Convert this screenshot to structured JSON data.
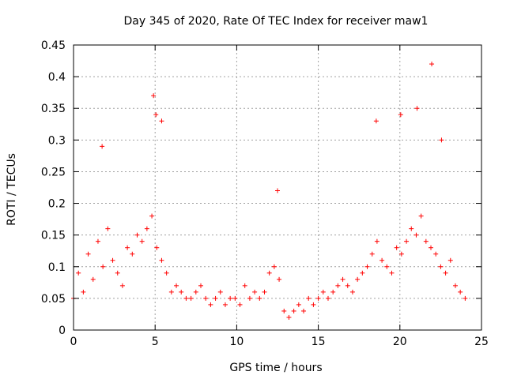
{
  "chart_data": {
    "type": "scatter",
    "title": "Day 345 of 2020, Rate Of TEC Index for receiver maw1",
    "xlabel": "GPS time / hours",
    "ylabel": "ROTI / TECUs",
    "xlim": [
      0,
      25
    ],
    "ylim": [
      0,
      0.45
    ],
    "x_ticks": [
      0,
      5,
      10,
      15,
      20,
      25
    ],
    "x_tick_labels": [
      "0",
      "5",
      "10",
      "15",
      "20",
      "25"
    ],
    "y_ticks": [
      0,
      0.05,
      0.1,
      0.15,
      0.2,
      0.25,
      0.3,
      0.35,
      0.4,
      0.45
    ],
    "y_tick_labels": [
      "0",
      "0.05",
      "0.1",
      "0.15",
      "0.2",
      "0.25",
      "0.3",
      "0.35",
      "0.4",
      "0.45"
    ],
    "grid": true,
    "marker": "+",
    "color": "#ff0000",
    "series": [
      {
        "x": [
          0.0,
          0.3,
          0.6,
          0.9,
          1.2,
          1.5,
          1.8,
          2.1,
          2.4,
          2.7,
          3.0,
          3.3,
          3.6,
          3.9,
          4.2,
          4.5,
          4.8,
          5.1,
          5.4,
          5.7,
          6.0,
          6.3,
          6.6,
          6.9,
          7.2,
          7.5,
          7.8,
          8.1,
          8.4,
          8.7,
          9.0,
          9.3,
          9.6,
          9.9,
          10.2,
          10.5,
          10.8,
          11.1,
          11.4,
          11.7,
          12.0,
          12.3,
          12.6,
          12.9,
          13.2,
          13.5,
          13.8,
          14.1,
          14.4,
          14.7,
          15.0,
          15.3,
          15.6,
          15.9,
          16.2,
          16.5,
          16.8,
          17.1,
          17.4,
          17.7,
          18.0,
          18.3,
          18.6,
          18.9,
          19.2,
          19.5,
          19.8,
          20.1,
          20.4,
          20.7,
          21.0,
          21.3,
          21.6,
          21.9,
          22.2,
          22.5,
          22.8,
          23.1,
          23.4,
          23.7,
          24.0,
          1.75,
          4.9,
          5.05,
          5.4,
          12.5,
          18.55,
          20.05,
          21.05,
          21.95,
          22.55
        ],
        "y": [
          0.05,
          0.09,
          0.06,
          0.12,
          0.08,
          0.14,
          0.1,
          0.16,
          0.11,
          0.09,
          0.07,
          0.13,
          0.12,
          0.15,
          0.14,
          0.16,
          0.18,
          0.13,
          0.11,
          0.09,
          0.06,
          0.07,
          0.06,
          0.05,
          0.05,
          0.06,
          0.07,
          0.05,
          0.04,
          0.05,
          0.06,
          0.04,
          0.05,
          0.05,
          0.04,
          0.07,
          0.05,
          0.06,
          0.05,
          0.06,
          0.09,
          0.1,
          0.08,
          0.03,
          0.02,
          0.03,
          0.04,
          0.03,
          0.05,
          0.04,
          0.05,
          0.06,
          0.05,
          0.06,
          0.07,
          0.08,
          0.07,
          0.06,
          0.08,
          0.09,
          0.1,
          0.12,
          0.14,
          0.11,
          0.1,
          0.09,
          0.13,
          0.12,
          0.14,
          0.16,
          0.15,
          0.18,
          0.14,
          0.13,
          0.12,
          0.1,
          0.09,
          0.11,
          0.07,
          0.06,
          0.05,
          0.29,
          0.37,
          0.34,
          0.33,
          0.22,
          0.33,
          0.34,
          0.35,
          0.42,
          0.3
        ]
      }
    ]
  }
}
